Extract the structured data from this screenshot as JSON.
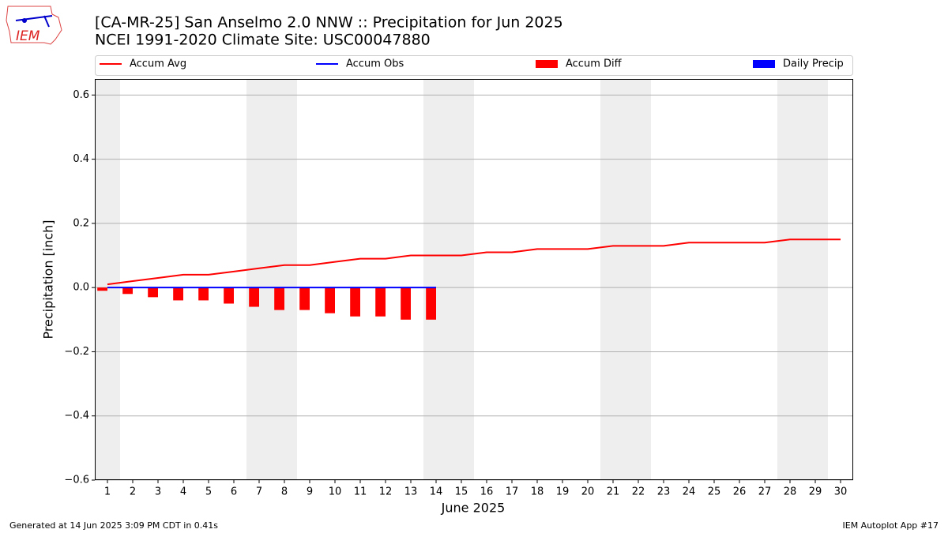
{
  "logo": "IEM",
  "footer": {
    "left": "Generated at 14 Jun 2025 3:09 PM CDT in 0.41s",
    "right": "IEM Autoplot App #17"
  },
  "chart_data": {
    "type": "combo",
    "title": "[CA-MR-25] San Anselmo 2.0 NNW :: Precipitation for Jun 2025",
    "subtitle": "NCEI 1991-2020 Climate Site: USC00047880",
    "xlabel": "June 2025",
    "ylabel": "Precipitation [inch]",
    "x": [
      1,
      2,
      3,
      4,
      5,
      6,
      7,
      8,
      9,
      10,
      11,
      12,
      13,
      14,
      15,
      16,
      17,
      18,
      19,
      20,
      21,
      22,
      23,
      24,
      25,
      26,
      27,
      28,
      29,
      30
    ],
    "xlim": [
      0.5,
      30.5
    ],
    "xticks": [
      1,
      2,
      3,
      4,
      5,
      6,
      7,
      8,
      9,
      10,
      11,
      12,
      13,
      14,
      15,
      16,
      17,
      18,
      19,
      20,
      21,
      22,
      23,
      24,
      25,
      26,
      27,
      28,
      29,
      30
    ],
    "ylim": [
      -0.6,
      0.65
    ],
    "yticks": [
      {
        "value": -0.6,
        "label": "−0.6"
      },
      {
        "value": -0.4,
        "label": "−0.4"
      },
      {
        "value": -0.2,
        "label": "−0.2"
      },
      {
        "value": 0,
        "label": "0.0"
      },
      0.2,
      0.4,
      0.6
    ],
    "grid": true,
    "shaded_days": [
      1,
      7,
      8,
      14,
      15,
      21,
      22,
      28,
      29
    ],
    "shade_color": "#eeeeee",
    "legend": "top",
    "series": [
      {
        "name": "Accum Avg",
        "type": "line",
        "color": "#ff0000",
        "values": [
          0.01,
          0.02,
          0.03,
          0.04,
          0.04,
          0.05,
          0.06,
          0.07,
          0.07,
          0.08,
          0.09,
          0.09,
          0.1,
          0.1,
          0.1,
          0.11,
          0.11,
          0.12,
          0.12,
          0.12,
          0.13,
          0.13,
          0.13,
          0.14,
          0.14,
          0.14,
          0.14,
          0.15,
          0.15,
          0.15
        ]
      },
      {
        "name": "Accum Obs",
        "type": "line",
        "color": "#0000ff",
        "values": [
          0,
          0,
          0,
          0,
          0,
          0,
          0,
          0,
          0,
          0,
          0,
          0,
          0,
          0,
          null,
          null,
          null,
          null,
          null,
          null,
          null,
          null,
          null,
          null,
          null,
          null,
          null,
          null,
          null,
          null
        ]
      },
      {
        "name": "Accum Diff",
        "type": "bar",
        "side": "left",
        "color": "#ff0000",
        "values": [
          -0.01,
          -0.02,
          -0.03,
          -0.04,
          -0.04,
          -0.05,
          -0.06,
          -0.07,
          -0.07,
          -0.08,
          -0.09,
          -0.09,
          -0.1,
          -0.1,
          null,
          null,
          null,
          null,
          null,
          null,
          null,
          null,
          null,
          null,
          null,
          null,
          null,
          null,
          null,
          null
        ]
      },
      {
        "name": "Daily Precip",
        "type": "bar",
        "side": "right",
        "color": "#0000ff",
        "values": [
          0,
          0,
          0,
          0,
          0,
          0,
          0,
          0,
          0,
          0,
          0,
          0,
          0,
          0,
          null,
          null,
          null,
          null,
          null,
          null,
          null,
          null,
          null,
          null,
          null,
          null,
          null,
          null,
          null,
          null
        ]
      }
    ]
  }
}
